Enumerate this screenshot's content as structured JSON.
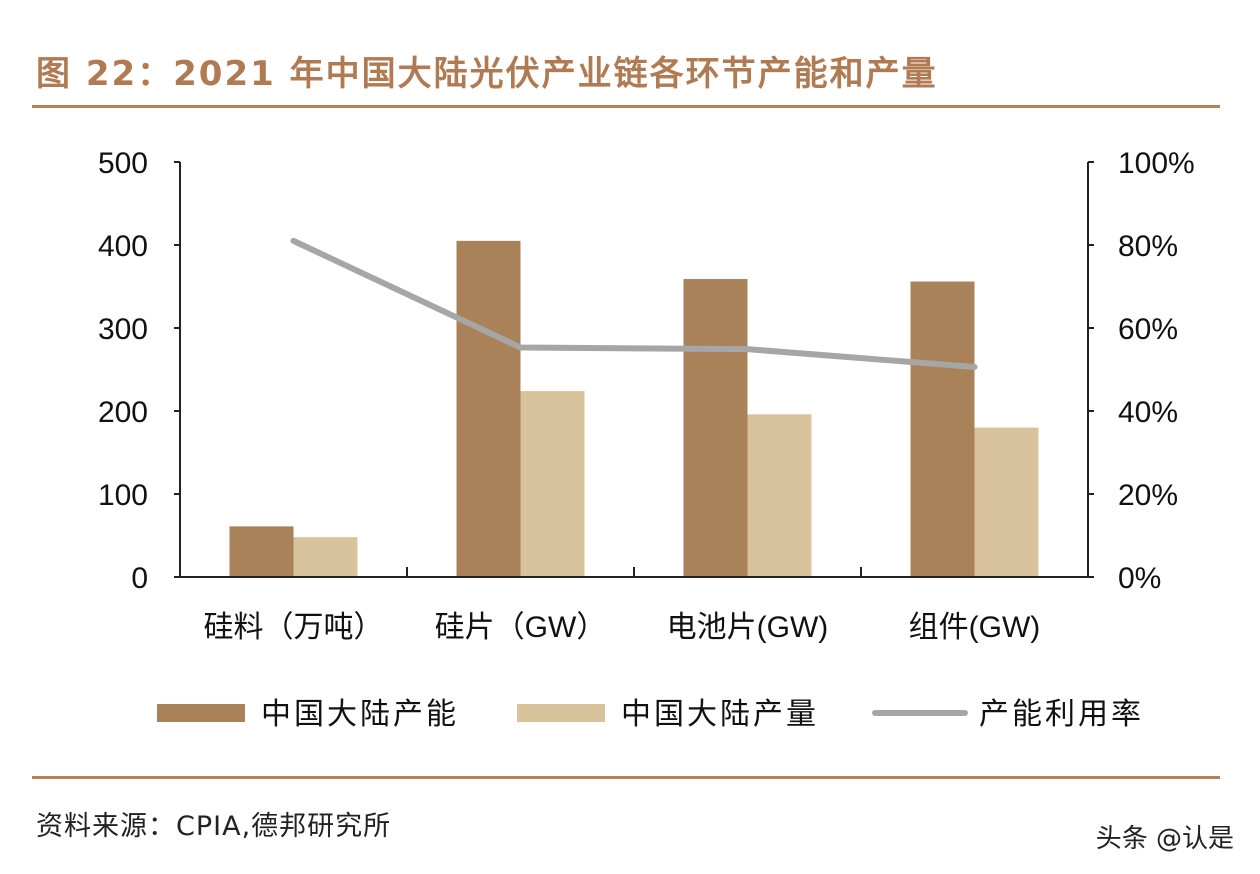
{
  "title": "图 22：2021 年中国大陆光伏产业链各环节产能和产量",
  "source": "资料来源：CPIA,德邦研究所",
  "watermark": "头条 @认是",
  "chart_data": {
    "type": "bar",
    "categories": [
      "硅料（万吨）",
      "硅片（GW）",
      "电池片(GW)",
      "组件(GW)"
    ],
    "series": [
      {
        "name": "中国大陆产能",
        "type": "bar",
        "axis": "left",
        "color": "#a98259",
        "values": [
          61,
          405,
          359,
          356
        ]
      },
      {
        "name": "中国大陆产量",
        "type": "bar",
        "axis": "left",
        "color": "#d8c39c",
        "values": [
          48,
          224,
          196,
          180
        ]
      },
      {
        "name": "产能利用率",
        "type": "line",
        "axis": "right",
        "color": "#a6a6a6",
        "values": [
          81,
          55.3,
          54.9,
          50.6
        ]
      }
    ],
    "ylim": [
      0,
      500
    ],
    "yticks": [
      "0",
      "100",
      "200",
      "300",
      "400",
      "500"
    ],
    "y2lim": [
      0,
      100
    ],
    "y2ticks": [
      "0%",
      "20%",
      "40%",
      "60%",
      "80%",
      "100%"
    ],
    "grid": false,
    "legend": "bottom"
  }
}
